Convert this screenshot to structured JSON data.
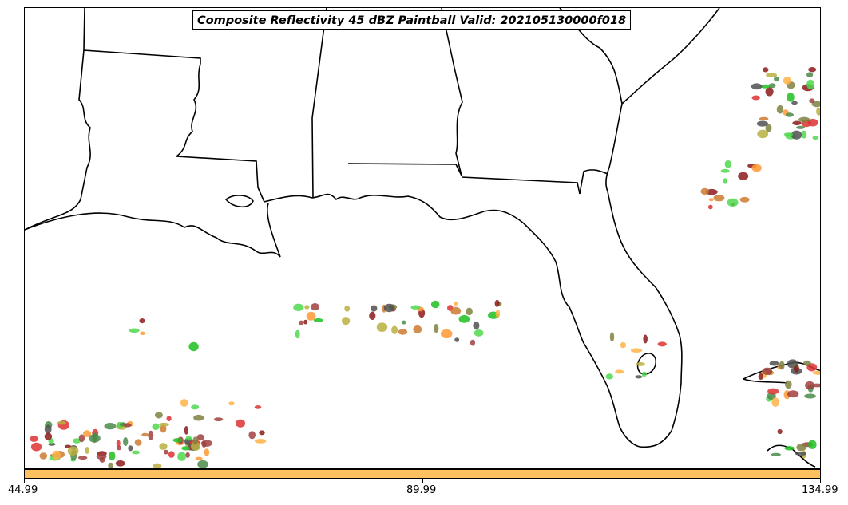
{
  "title": "Composite Reflectivity 45 dBZ Paintball Valid: 202105130000f018",
  "colorbar": {
    "color": "#ffc060",
    "ticks": [
      "44.99",
      "89.99",
      "134.99"
    ]
  },
  "palette": [
    "#4fd84f",
    "#dd3333",
    "#ff9933",
    "#ffb347",
    "#b8b040",
    "#a04040",
    "#808040",
    "#4a8a4a",
    "#1fc01f",
    "#505050",
    "#cc7a30",
    "#8b1a1a"
  ],
  "map": {
    "style": "state and coastline outlines, paintball ensemble member blobs",
    "regions": [
      "Louisiana",
      "Mississippi",
      "Alabama",
      "Georgia",
      "Florida",
      "Gulf of Mexico",
      "Atlantic"
    ]
  }
}
